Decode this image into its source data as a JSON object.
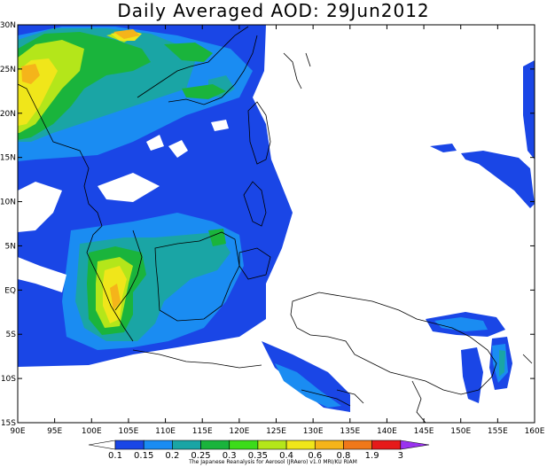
{
  "title": "Daily Averaged AOD: 29Jun2012",
  "map": {
    "lon_range": [
      90,
      160
    ],
    "lat_range": [
      -15,
      30
    ],
    "lon_ticks": [
      "90E",
      "95E",
      "100E",
      "105E",
      "110E",
      "115E",
      "120E",
      "125E",
      "130E",
      "135E",
      "140E",
      "145E",
      "150E",
      "155E",
      "160E"
    ],
    "lat_ticks": [
      "30N",
      "25N",
      "20N",
      "15N",
      "10N",
      "5N",
      "EQ",
      "5S",
      "10S",
      "15S"
    ]
  },
  "colorbar": {
    "labels": [
      "0.1",
      "0.15",
      "0.2",
      "0.25",
      "0.3",
      "0.35",
      "0.4",
      "0.6",
      "0.8",
      "1.9",
      "3"
    ],
    "colors": [
      "#1a46e6",
      "#1a8cf2",
      "#1aa5a5",
      "#1ab43c",
      "#3cdc1a",
      "#b4e61a",
      "#f0e61a",
      "#f5b41a",
      "#f0781a",
      "#e61a1a",
      "#9a32f0"
    ],
    "credit": "The Japanese Reanalysis for Aerosol (JRAero) v1.0 MRI/KU RIAM"
  }
}
